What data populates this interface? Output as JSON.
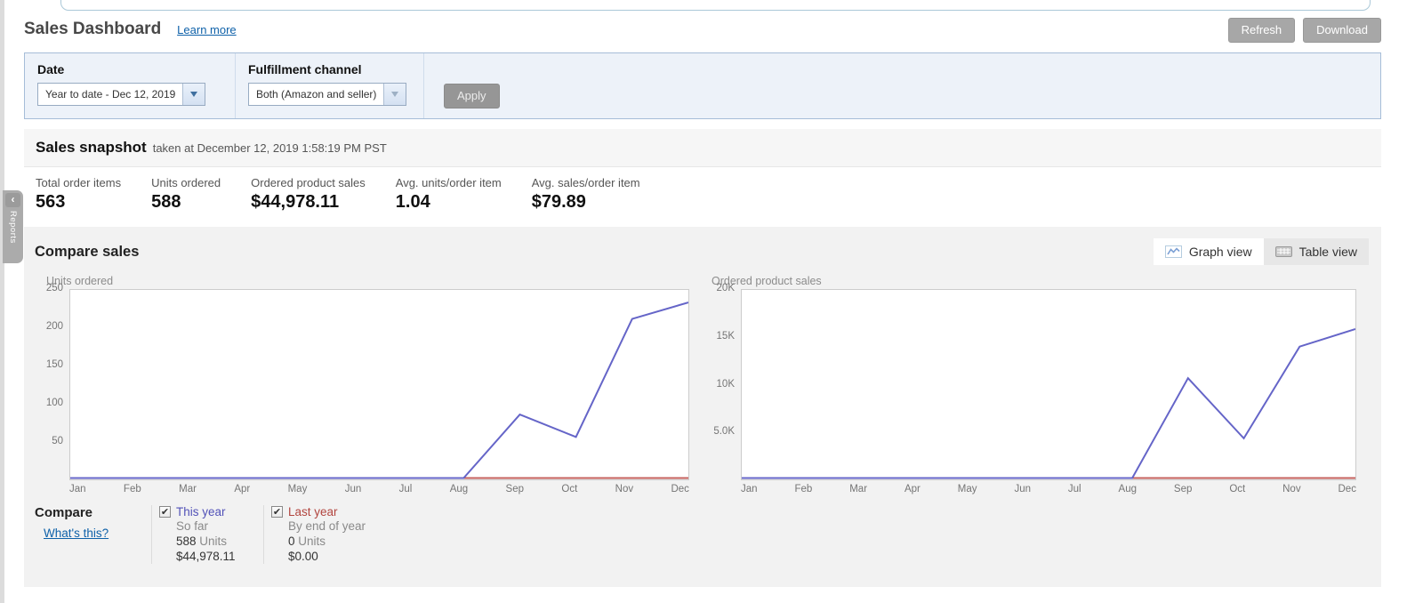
{
  "page": {
    "left_rail_tab": "Reports"
  },
  "header": {
    "title": "Sales Dashboard",
    "learn_more": "Learn more",
    "refresh": "Refresh",
    "download": "Download"
  },
  "filters": {
    "date_label": "Date",
    "date_value": "Year to date - Dec 12, 2019",
    "channel_label": "Fulfillment channel",
    "channel_value": "Both (Amazon and seller)",
    "apply": "Apply"
  },
  "snapshot": {
    "title": "Sales snapshot",
    "taken_at": "taken at December 12, 2019 1:58:19 PM PST",
    "metrics": [
      {
        "label": "Total order items",
        "value": "563"
      },
      {
        "label": "Units ordered",
        "value": "588"
      },
      {
        "label": "Ordered product sales",
        "value": "$44,978.11"
      },
      {
        "label": "Avg. units/order item",
        "value": "1.04"
      },
      {
        "label": "Avg. sales/order item",
        "value": "$79.89"
      }
    ]
  },
  "compare_sales": {
    "title": "Compare sales",
    "graph_view": "Graph view",
    "table_view": "Table view",
    "legend": {
      "compare_label": "Compare",
      "whats_this": "What's this?",
      "items": [
        {
          "name": "This year",
          "checked": true,
          "scope": "So far",
          "units_value": "588",
          "units_word": "Units",
          "sales": "$44,978.11",
          "name_color": "#5252b8"
        },
        {
          "name": "Last year",
          "checked": true,
          "scope": "By end of year",
          "units_value": "0",
          "units_word": "Units",
          "sales": "$0.00",
          "name_color": "#b2453f"
        }
      ]
    }
  },
  "chart_data": [
    {
      "type": "line",
      "title": "Units ordered",
      "x": [
        "Jan",
        "Feb",
        "Mar",
        "Apr",
        "May",
        "Jun",
        "Jul",
        "Aug",
        "Sep",
        "Oct",
        "Nov",
        "Dec"
      ],
      "ylim": [
        0,
        250
      ],
      "yticks": [
        "250",
        "200",
        "150",
        "100",
        "50"
      ],
      "grid": false,
      "series": [
        {
          "name": "This year",
          "color": "#6565c8",
          "values": [
            0,
            0,
            0,
            0,
            0,
            0,
            0,
            0,
            85,
            55,
            213,
            235
          ]
        },
        {
          "name": "Last year",
          "color": "#c4605c",
          "values": [
            0,
            0,
            0,
            0,
            0,
            0,
            0,
            0,
            0,
            0,
            0,
            0
          ]
        }
      ]
    },
    {
      "type": "line",
      "title": "Ordered product sales",
      "x": [
        "Jan",
        "Feb",
        "Mar",
        "Apr",
        "May",
        "Jun",
        "Jul",
        "Aug",
        "Sep",
        "Oct",
        "Nov",
        "Dec"
      ],
      "ylim": [
        0,
        20000
      ],
      "yticks": [
        "20K",
        "15K",
        "10K",
        "5.0K"
      ],
      "grid": false,
      "series": [
        {
          "name": "This year",
          "color": "#6565c8",
          "values": [
            0,
            0,
            0,
            0,
            0,
            0,
            0,
            0,
            10700,
            4250,
            14078,
            15950
          ]
        },
        {
          "name": "Last year",
          "color": "#c4605c",
          "values": [
            0,
            0,
            0,
            0,
            0,
            0,
            0,
            0,
            0,
            0,
            0,
            0
          ]
        }
      ]
    }
  ],
  "colors": {
    "this_year": "#6565c8",
    "last_year": "#c4605c",
    "link": "#0e61a9",
    "panel_bg": "#f2f2f2",
    "filter_bg": "#edf2f9",
    "filter_border": "#a6bdd8",
    "button_gray": "#a7a7a7"
  }
}
